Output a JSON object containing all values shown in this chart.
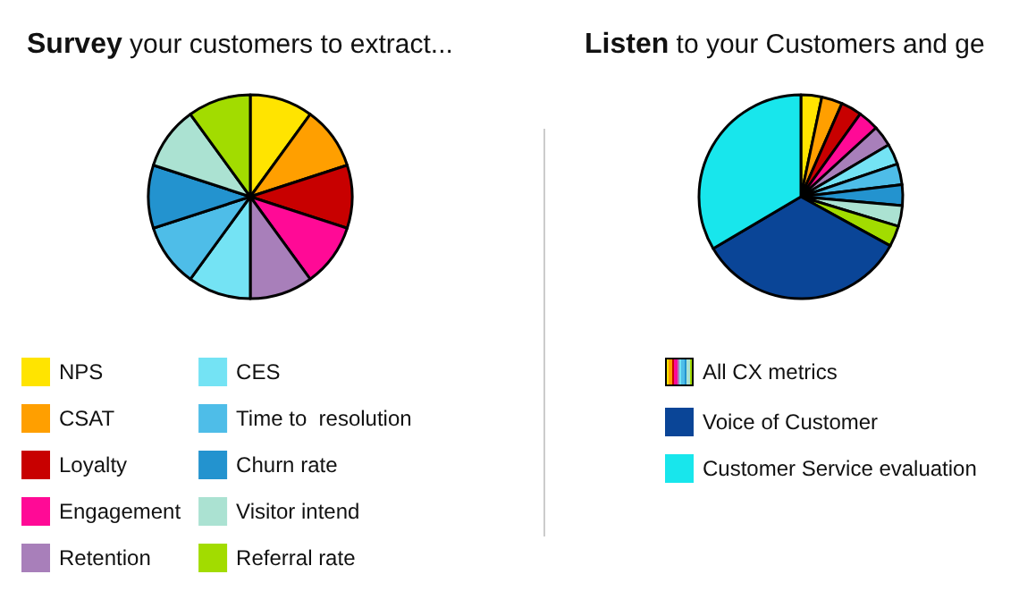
{
  "chart_data": [
    {
      "type": "pie",
      "title": "Survey your customers to extract...",
      "categories": [
        "NPS",
        "CSAT",
        "Loyalty",
        "Engagement",
        "Retention",
        "CES",
        "Time to  resolution",
        "Churn rate",
        "Visitor intend",
        "Referral rate"
      ],
      "values": [
        10,
        10,
        10,
        10,
        10,
        10,
        10,
        10,
        10,
        10
      ],
      "colors": [
        "#ffe400",
        "#ff9f00",
        "#c80000",
        "#ff0a96",
        "#a87fba",
        "#74e3f4",
        "#4ebde8",
        "#2393cf",
        "#abe2d2",
        "#a2dc00"
      ],
      "legend": "bottom"
    },
    {
      "type": "pie",
      "title": "Listen to your Customers and ge",
      "categories": [
        null,
        null,
        null,
        null,
        null,
        null,
        null,
        null,
        null,
        null,
        "Voice of Customer",
        "Customer Service evaluation"
      ],
      "values": [
        3.3,
        3.3,
        3.3,
        3.3,
        3.3,
        3.3,
        3.3,
        3.3,
        3.3,
        3.3,
        33.5,
        33.5
      ],
      "colors": [
        "#ffe400",
        "#ff9f00",
        "#c80000",
        "#ff0a96",
        "#a87fba",
        "#74e3f4",
        "#4ebde8",
        "#2393cf",
        "#abe2d2",
        "#a2dc00",
        "#0a4597",
        "#18e6ec"
      ],
      "annotations": [
        "All CX metrics"
      ],
      "legend": "bottom"
    }
  ]
}
